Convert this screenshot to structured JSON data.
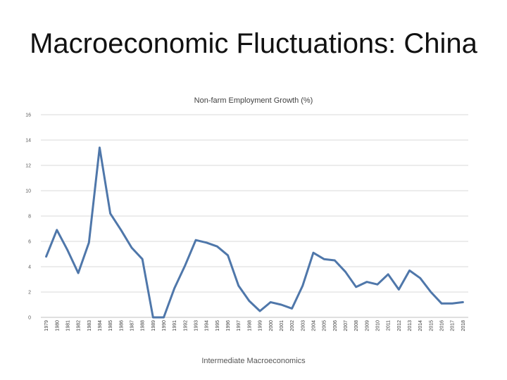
{
  "slide": {
    "title": "Macroeconomic Fluctuations: China",
    "footer": "Intermediate Macroeconomics"
  },
  "chart_data": {
    "type": "line",
    "title": "Non-farm Employment Growth (%)",
    "xlabel": "",
    "ylabel": "",
    "ylim": [
      0,
      16
    ],
    "yticks": [
      0,
      2,
      4,
      6,
      8,
      10,
      12,
      14,
      16
    ],
    "grid": true,
    "line_color": "#4f77aa",
    "x": [
      "1979",
      "1980",
      "1981",
      "1982",
      "1983",
      "1984",
      "1985",
      "1986",
      "1987",
      "1988",
      "1989",
      "1990",
      "1991",
      "1992",
      "1993",
      "1994",
      "1995",
      "1996",
      "1997",
      "1998",
      "1999",
      "2000",
      "2001",
      "2002",
      "2003",
      "2004",
      "2005",
      "2006",
      "2007",
      "2008",
      "2009",
      "2010",
      "2011",
      "2012",
      "2013",
      "2014",
      "2015",
      "2016",
      "2017",
      "2018"
    ],
    "series": [
      {
        "name": "Non-farm Employment Growth (%)",
        "values": [
          4.8,
          6.9,
          5.3,
          3.5,
          5.9,
          13.4,
          8.2,
          6.9,
          5.5,
          4.6,
          0.0,
          0.0,
          2.3,
          4.1,
          6.1,
          5.9,
          5.6,
          4.9,
          2.5,
          1.3,
          0.5,
          1.2,
          1.0,
          0.7,
          2.5,
          5.1,
          4.6,
          4.5,
          3.6,
          2.4,
          2.8,
          2.6,
          3.4,
          2.2,
          3.7,
          3.1,
          2.0,
          1.1,
          1.1,
          1.2
        ]
      }
    ]
  }
}
